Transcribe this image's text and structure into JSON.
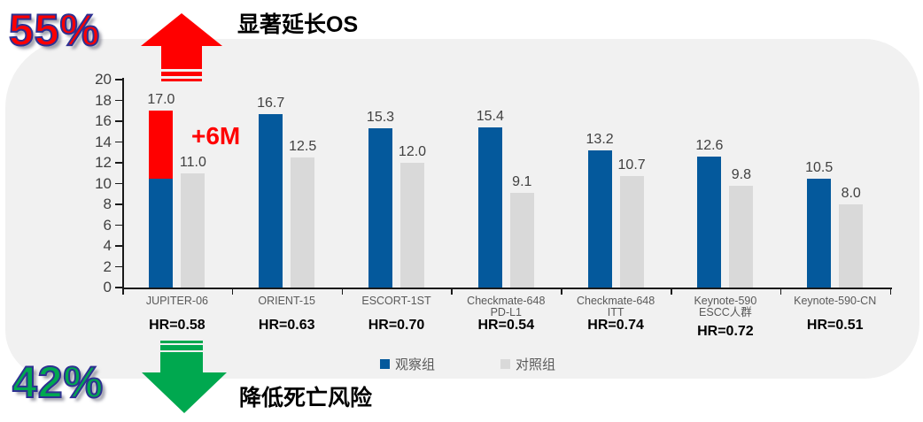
{
  "header": {
    "pct_increase": "55%",
    "os_text": "显著延长OS"
  },
  "footer": {
    "pct_decrease": "42%",
    "risk_text": "降低死亡风险"
  },
  "legend": {
    "observation": "观察组",
    "control": "对照组"
  },
  "colors": {
    "observation_blue": "#04599c",
    "control_gray": "#d9d9d9",
    "highlight_red": "#ff0000",
    "arrow_green": "#00a84f",
    "outline_navy": "#2e3192",
    "panel_gray": "#f1f1f1"
  },
  "chart_data": {
    "type": "bar",
    "title": "",
    "xlabel": "",
    "ylabel": "",
    "ylim": [
      0,
      20
    ],
    "yticks": [
      0,
      2,
      4,
      6,
      8,
      10,
      12,
      14,
      16,
      18,
      20
    ],
    "grid": false,
    "legend_position": "bottom",
    "categories": [
      [
        "JUPITER-06"
      ],
      [
        "ORIENT-15"
      ],
      [
        "ESCORT-1ST"
      ],
      [
        "Checkmate-648",
        "PD-L1"
      ],
      [
        "Checkmate-648",
        "ITT"
      ],
      [
        "Keynote-590",
        "ESCC人群"
      ],
      [
        "Keynote-590-CN"
      ]
    ],
    "series": [
      {
        "name": "观察组",
        "color": "#04599c",
        "values": [
          17.0,
          16.7,
          15.3,
          15.4,
          13.2,
          12.6,
          10.5
        ]
      },
      {
        "name": "对照组",
        "color": "#d9d9d9",
        "values": [
          11.0,
          12.5,
          12.0,
          9.1,
          10.7,
          9.8,
          8.0
        ]
      }
    ],
    "hr_labels": [
      "HR=0.58",
      "HR=0.63",
      "HR=0.70",
      "HR=0.54",
      "HR=0.74",
      "HR=0.72",
      "HR=0.51"
    ],
    "highlight_segment": {
      "category_index": 0,
      "series": "观察组",
      "from": 10.5,
      "to": 17.0,
      "color": "#ff0000",
      "label": "+6M"
    }
  }
}
